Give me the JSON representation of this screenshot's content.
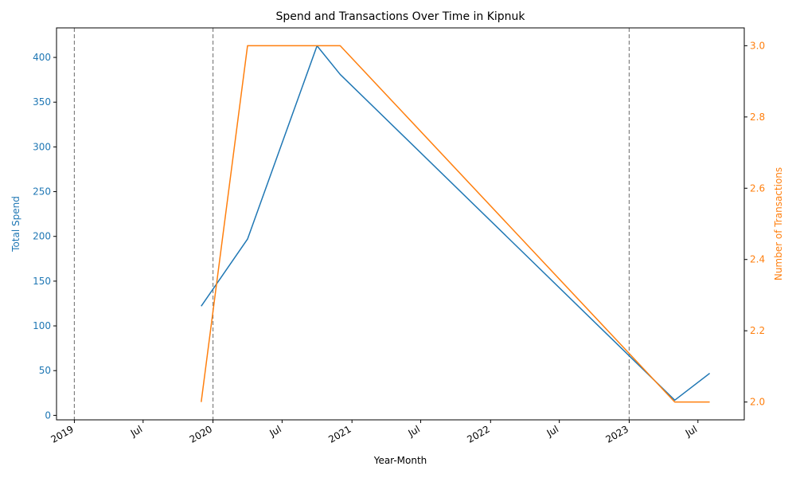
{
  "chart_data": {
    "type": "line",
    "title": "Spend and Transactions Over Time in Kipnuk",
    "xlabel": "Year-Month",
    "ylabel_left": "Total Spend",
    "ylabel_right": "Number of Transactions",
    "x_tick_labels": [
      "2019",
      "Jul",
      "2020",
      "Jul",
      "2021",
      "Jul",
      "2022",
      "Jul",
      "2023",
      "Jul"
    ],
    "x_tick_dates": [
      "2019-01-01",
      "2019-07-01",
      "2020-01-01",
      "2020-07-01",
      "2021-01-01",
      "2021-07-01",
      "2022-01-01",
      "2022-07-01",
      "2023-01-01",
      "2023-07-01"
    ],
    "xlim": [
      "2018-11-15",
      "2023-10-31"
    ],
    "ylim_left": [
      -5,
      433
    ],
    "yticks_left": [
      0,
      50,
      100,
      150,
      200,
      250,
      300,
      350,
      400
    ],
    "ylim_right": [
      1.95,
      3.05
    ],
    "yticks_right": [
      2.0,
      2.2,
      2.4,
      2.6,
      2.8,
      3.0
    ],
    "vertical_reference_lines": [
      "2019-01-01",
      "2020-01-01",
      "2023-01-01"
    ],
    "colors": {
      "spend": "#1f77b4",
      "transactions": "#ff7f0e",
      "reference": "#808080"
    },
    "series": [
      {
        "name": "Total Spend",
        "axis": "left",
        "x": [
          "2019-12-01",
          "2020-04-01",
          "2020-10-01",
          "2020-12-01",
          "2023-05-01",
          "2023-08-01"
        ],
        "values": [
          122,
          197,
          413,
          381,
          17,
          47
        ]
      },
      {
        "name": "Number of Transactions",
        "axis": "right",
        "x": [
          "2019-12-01",
          "2020-04-01",
          "2020-12-01",
          "2023-05-01",
          "2023-08-01"
        ],
        "values": [
          2,
          3,
          3,
          2,
          2
        ]
      }
    ]
  }
}
